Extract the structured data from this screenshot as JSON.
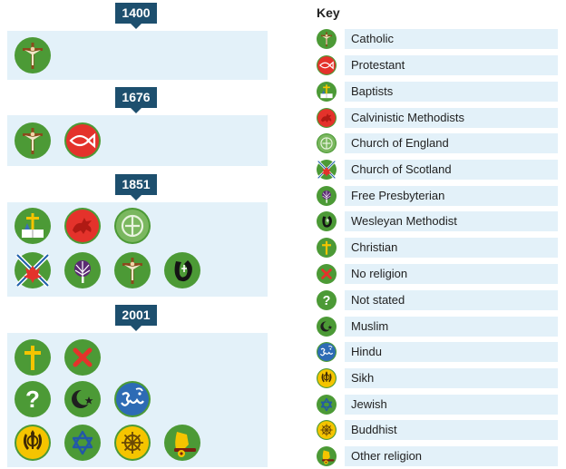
{
  "timeline": [
    {
      "year": "1400",
      "rows": [
        [
          "catholic"
        ]
      ]
    },
    {
      "year": "1676",
      "rows": [
        [
          "catholic",
          "protestant"
        ]
      ]
    },
    {
      "year": "1851",
      "rows": [
        [
          "baptists",
          "calvinistic-methodists",
          "church-of-england"
        ],
        [
          "church-of-scotland",
          "free-presbyterian",
          "catholic",
          "wesleyan-methodist"
        ]
      ]
    },
    {
      "year": "2001",
      "rows": [
        [
          "christian",
          "no-religion"
        ],
        [
          "not-stated",
          "muslim",
          "hindu"
        ],
        [
          "sikh",
          "jewish",
          "buddhist",
          "other-religion"
        ]
      ]
    }
  ],
  "key": {
    "title": "Key",
    "items": [
      {
        "id": "catholic",
        "label": "Catholic"
      },
      {
        "id": "protestant",
        "label": "Protestant"
      },
      {
        "id": "baptists",
        "label": "Baptists"
      },
      {
        "id": "calvinistic-methodists",
        "label": "Calvinistic Methodists"
      },
      {
        "id": "church-of-england",
        "label": "Church of England"
      },
      {
        "id": "church-of-scotland",
        "label": "Church of Scotland"
      },
      {
        "id": "free-presbyterian",
        "label": "Free Presbyterian"
      },
      {
        "id": "wesleyan-methodist",
        "label": "Wesleyan Methodist"
      },
      {
        "id": "christian",
        "label": "Christian"
      },
      {
        "id": "no-religion",
        "label": "No religion"
      },
      {
        "id": "not-stated",
        "label": "Not stated"
      },
      {
        "id": "muslim",
        "label": "Muslim"
      },
      {
        "id": "hindu",
        "label": "Hindu"
      },
      {
        "id": "sikh",
        "label": "Sikh"
      },
      {
        "id": "jewish",
        "label": "Jewish"
      },
      {
        "id": "buddhist",
        "label": "Buddhist"
      },
      {
        "id": "other-religion",
        "label": "Other religion"
      }
    ]
  },
  "colors": {
    "year_tag": "#1d4f6e",
    "panel": "#e3f1f9",
    "icon_background": "#4c9a36",
    "gold": "#f5c400",
    "red": "#e4322b"
  }
}
